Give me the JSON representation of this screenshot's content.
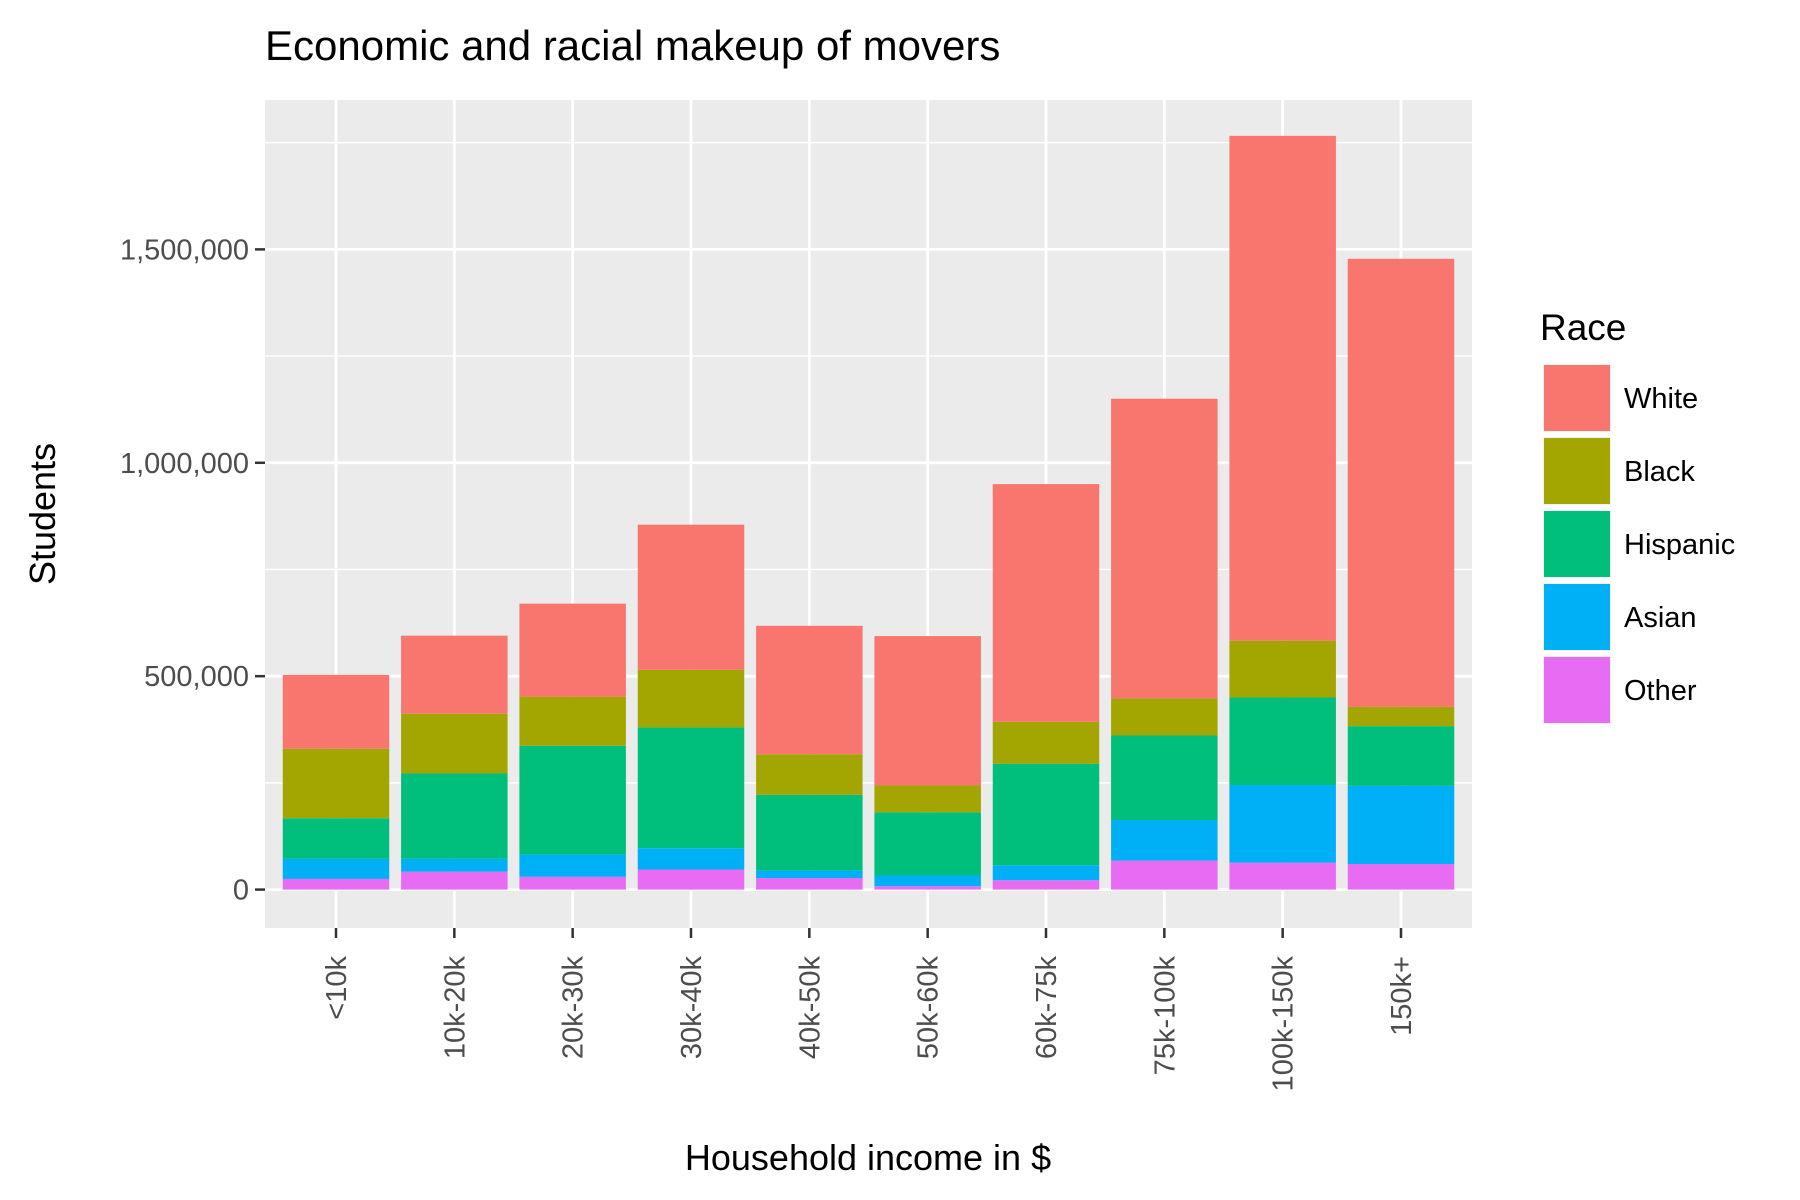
{
  "chart_data": {
    "type": "bar",
    "stacked": true,
    "title": "Economic and racial makeup of movers",
    "xlabel": "Household income in $",
    "ylabel": "Students",
    "categories": [
      "<10k",
      "10k-20k",
      "20k-30k",
      "30k-40k",
      "40k-50k",
      "50k-60k",
      "60k-75k",
      "75k-100k",
      "100k-150k",
      "150k+"
    ],
    "ylim": [
      -90000,
      1850000
    ],
    "yticks": [
      0,
      500000,
      1000000,
      1500000
    ],
    "ytick_labels": [
      "0",
      "500,000",
      "1,000,000",
      "1,500,000"
    ],
    "grid": true,
    "legend": {
      "title": "Race",
      "position": "right"
    },
    "series": [
      {
        "name": "Other",
        "color": "#E76BF3",
        "values": [
          25000,
          42000,
          30000,
          47000,
          27000,
          8000,
          22000,
          68000,
          63000,
          60000
        ]
      },
      {
        "name": "Asian",
        "color": "#00B0F6",
        "values": [
          47000,
          30000,
          52000,
          50000,
          18000,
          25000,
          35000,
          95000,
          182000,
          183000
        ]
      },
      {
        "name": "Hispanic",
        "color": "#00BF7D",
        "values": [
          95000,
          200000,
          255000,
          283000,
          177000,
          148000,
          238000,
          198000,
          205000,
          140000
        ]
      },
      {
        "name": "Black",
        "color": "#A3A500",
        "values": [
          163000,
          140000,
          115000,
          135000,
          95000,
          63000,
          98000,
          87000,
          133000,
          45000
        ]
      },
      {
        "name": "White",
        "color": "#F8766D",
        "values": [
          173000,
          183000,
          218000,
          340000,
          301000,
          350000,
          557000,
          702000,
          1183000,
          1050000
        ]
      }
    ],
    "legend_order": [
      "White",
      "Black",
      "Hispanic",
      "Asian",
      "Other"
    ]
  }
}
